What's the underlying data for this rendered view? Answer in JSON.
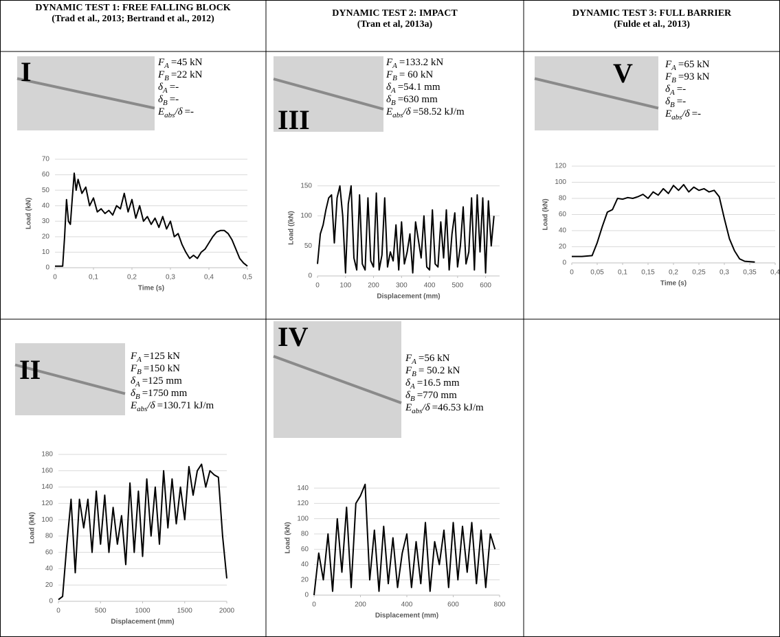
{
  "table": {
    "headers": [
      {
        "title": "DYNAMIC TEST 1: FREE FALLING BLOCK",
        "ref": "(Trad et al., 2013; Bertrand et al., 2012)"
      },
      {
        "title": "DYNAMIC TEST 2: IMPACT",
        "ref": "(Tran et al, 2013a)"
      },
      {
        "title": "DYNAMIC TEST 3: FULL BARRIER",
        "ref": "(Fulde et al., 2013)"
      }
    ],
    "cells": [
      {
        "label": "I",
        "params": [
          {
            "symbol": "F",
            "sub": "A",
            "value": "=45 kN"
          },
          {
            "symbol": "F",
            "sub": "B",
            "value": "=22 kN"
          },
          {
            "symbol": "δ",
            "sub": "A",
            "value": "=-"
          },
          {
            "symbol": "δ",
            "sub": "B",
            "value": "=-"
          },
          {
            "symbol": "E",
            "sub": "abs",
            "suffix": "/δ",
            "value": "=-"
          }
        ],
        "chart": {
          "type": "line",
          "color": "#000000",
          "grid": true,
          "xlabel": "Time (s)",
          "ylabel": "Load (kN)",
          "xlim": [
            0,
            0.5
          ],
          "ylim": [
            0,
            70
          ],
          "xticks": [
            0,
            {
              "value": 0.1,
              "label": "0,1"
            },
            {
              "value": 0.2,
              "label": "0,2"
            },
            {
              "value": 0.3,
              "label": "0,3"
            },
            {
              "value": 0.4,
              "label": "0,4"
            },
            {
              "value": 0.5,
              "label": "0,5"
            }
          ],
          "yticks": [
            0,
            10,
            20,
            30,
            40,
            50,
            60,
            70
          ],
          "x": [
            0,
            0.02,
            0.025,
            0.03,
            0.035,
            0.04,
            0.045,
            0.05,
            0.055,
            0.06,
            0.07,
            0.08,
            0.09,
            0.1,
            0.11,
            0.12,
            0.13,
            0.14,
            0.15,
            0.16,
            0.17,
            0.18,
            0.19,
            0.2,
            0.21,
            0.22,
            0.23,
            0.24,
            0.25,
            0.26,
            0.27,
            0.28,
            0.29,
            0.3,
            0.31,
            0.32,
            0.33,
            0.34,
            0.35,
            0.36,
            0.37,
            0.38,
            0.39,
            0.4,
            0.41,
            0.42,
            0.43,
            0.44,
            0.45,
            0.46,
            0.47,
            0.48,
            0.49,
            0.5
          ],
          "values": [
            1,
            1,
            20,
            44,
            30,
            28,
            45,
            61,
            50,
            57,
            48,
            52,
            40,
            45,
            36,
            38,
            35,
            37,
            34,
            40,
            38,
            48,
            36,
            44,
            32,
            40,
            30,
            33,
            28,
            32,
            26,
            33,
            25,
            30,
            20,
            22,
            15,
            10,
            6,
            8,
            6,
            10,
            12,
            16,
            20,
            23,
            24,
            24,
            22,
            18,
            12,
            6,
            3,
            1
          ]
        }
      },
      {
        "label": "III",
        "params": [
          {
            "symbol": "F",
            "sub": "A",
            "value": "=133.2 kN"
          },
          {
            "symbol": "F",
            "sub": "B",
            "value": "= 60 kN"
          },
          {
            "symbol": "δ",
            "sub": "A",
            "value": "=54.1 mm"
          },
          {
            "symbol": "δ",
            "sub": "B",
            "value": "=630 mm"
          },
          {
            "symbol": "E",
            "sub": "abs",
            "suffix": "/δ",
            "value": "=58.52 kJ/m"
          }
        ],
        "chart": {
          "type": "line",
          "color": "#000000",
          "grid": true,
          "xlabel": "Displacement (mm)",
          "ylabel": "Load ((kN)",
          "xlim": [
            0,
            650
          ],
          "ylim": [
            0,
            160
          ],
          "xticks": [
            0,
            100,
            200,
            300,
            400,
            500,
            600
          ],
          "yticks": [
            0,
            50,
            100,
            150
          ],
          "x": [
            0,
            10,
            20,
            30,
            40,
            50,
            60,
            70,
            80,
            90,
            100,
            110,
            120,
            130,
            140,
            150,
            160,
            170,
            180,
            190,
            200,
            210,
            220,
            230,
            240,
            250,
            260,
            270,
            280,
            290,
            300,
            310,
            320,
            330,
            340,
            350,
            360,
            370,
            380,
            390,
            400,
            410,
            420,
            430,
            440,
            450,
            460,
            470,
            480,
            490,
            500,
            510,
            520,
            530,
            540,
            550,
            560,
            570,
            580,
            590,
            600,
            610,
            620,
            630
          ],
          "values": [
            20,
            70,
            85,
            110,
            130,
            135,
            55,
            130,
            150,
            100,
            5,
            120,
            150,
            30,
            10,
            135,
            20,
            10,
            130,
            25,
            15,
            138,
            10,
            35,
            130,
            15,
            40,
            25,
            85,
            10,
            90,
            20,
            40,
            70,
            5,
            90,
            60,
            30,
            100,
            15,
            10,
            110,
            20,
            15,
            90,
            30,
            110,
            10,
            70,
            105,
            15,
            50,
            115,
            20,
            40,
            130,
            10,
            135,
            40,
            130,
            5,
            125,
            50,
            100
          ]
        }
      },
      {
        "label": "V",
        "params": [
          {
            "symbol": "F",
            "sub": "A",
            "value": "=65 kN"
          },
          {
            "symbol": "F",
            "sub": "B",
            "value": "=93 kN"
          },
          {
            "symbol": "δ",
            "sub": "A",
            "value": "=-"
          },
          {
            "symbol": "δ",
            "sub": "B",
            "value": "=-"
          },
          {
            "symbol": "E",
            "sub": "abs",
            "suffix": "/δ",
            "value": "=-"
          }
        ],
        "chart": {
          "type": "line",
          "color": "#000000",
          "grid": true,
          "xlabel": "Time (s)",
          "ylabel": "Load (kN)",
          "xlim": [
            0,
            0.4
          ],
          "ylim": [
            0,
            120
          ],
          "xticks": [
            0,
            {
              "value": 0.05,
              "label": "0,05"
            },
            {
              "value": 0.1,
              "label": "0,1"
            },
            {
              "value": 0.15,
              "label": "0,15"
            },
            {
              "value": 0.2,
              "label": "0,2"
            },
            {
              "value": 0.25,
              "label": "0,25"
            },
            {
              "value": 0.3,
              "label": "0,3"
            },
            {
              "value": 0.35,
              "label": "0,35"
            },
            {
              "value": 0.4,
              "label": "0,4"
            }
          ],
          "yticks": [
            0,
            20,
            40,
            60,
            80,
            100,
            120
          ],
          "x": [
            0,
            0.02,
            0.04,
            0.05,
            0.06,
            0.07,
            0.08,
            0.09,
            0.1,
            0.11,
            0.12,
            0.13,
            0.14,
            0.15,
            0.16,
            0.17,
            0.18,
            0.19,
            0.2,
            0.21,
            0.22,
            0.23,
            0.24,
            0.25,
            0.26,
            0.27,
            0.28,
            0.29,
            0.3,
            0.31,
            0.32,
            0.33,
            0.34,
            0.36
          ],
          "values": [
            8,
            8,
            9,
            25,
            45,
            63,
            66,
            80,
            79,
            81,
            80,
            82,
            85,
            80,
            88,
            84,
            92,
            86,
            96,
            90,
            97,
            88,
            94,
            90,
            92,
            88,
            90,
            82,
            55,
            30,
            15,
            5,
            2,
            1
          ]
        }
      },
      {
        "label": "II",
        "params": [
          {
            "symbol": "F",
            "sub": "A",
            "value": "=125 kN"
          },
          {
            "symbol": "F",
            "sub": "B",
            "value": "=150 kN"
          },
          {
            "symbol": "δ",
            "sub": "A",
            "value": "=125 mm"
          },
          {
            "symbol": "δ",
            "sub": "B",
            "value": "=1750 mm"
          },
          {
            "symbol": "E",
            "sub": "abs",
            "suffix": "/δ",
            "value": "=130.71 kJ/m"
          }
        ],
        "chart": {
          "type": "line",
          "color": "#000000",
          "grid": true,
          "xlabel": "Displacement (mm)",
          "ylabel": "Load (kN)",
          "xlim": [
            0,
            2000
          ],
          "ylim": [
            0,
            180
          ],
          "xticks": [
            0,
            500,
            1000,
            1500,
            2000
          ],
          "yticks": [
            0,
            20,
            40,
            60,
            80,
            100,
            120,
            140,
            160,
            180
          ],
          "x": [
            0,
            50,
            100,
            150,
            200,
            250,
            300,
            350,
            400,
            450,
            500,
            550,
            600,
            650,
            700,
            750,
            800,
            850,
            900,
            950,
            1000,
            1050,
            1100,
            1150,
            1200,
            1250,
            1300,
            1350,
            1400,
            1450,
            1500,
            1550,
            1600,
            1650,
            1700,
            1750,
            1800,
            1850,
            1900,
            1950,
            2000
          ],
          "values": [
            2,
            6,
            70,
            125,
            35,
            125,
            90,
            125,
            60,
            135,
            70,
            130,
            60,
            115,
            70,
            105,
            45,
            145,
            60,
            135,
            55,
            150,
            80,
            140,
            70,
            160,
            90,
            150,
            95,
            140,
            100,
            165,
            130,
            160,
            168,
            140,
            160,
            155,
            152,
            80,
            28
          ]
        }
      },
      {
        "label": "IV",
        "params": [
          {
            "symbol": "F",
            "sub": "A",
            "value": "=56 kN"
          },
          {
            "symbol": "F",
            "sub": "B",
            "value": "= 50.2 kN"
          },
          {
            "symbol": "δ",
            "sub": "A",
            "value": "=16.5 mm"
          },
          {
            "symbol": "δ",
            "sub": "B",
            "value": "=770 mm"
          },
          {
            "symbol": "E",
            "sub": "abs",
            "suffix": "/δ",
            "value": "=46.53  kJ/m"
          }
        ],
        "chart": {
          "type": "line",
          "color": "#000000",
          "grid": true,
          "xlabel": "Displacement (mm)",
          "ylabel": "Load (kN)",
          "xlim": [
            0,
            800
          ],
          "ylim": [
            0,
            150
          ],
          "xticks": [
            0,
            200,
            400,
            600,
            800
          ],
          "yticks": [
            0,
            20,
            40,
            60,
            80,
            100,
            120,
            140
          ],
          "x": [
            0,
            20,
            40,
            60,
            80,
            100,
            120,
            140,
            160,
            180,
            200,
            220,
            240,
            260,
            280,
            300,
            320,
            340,
            360,
            380,
            400,
            420,
            440,
            460,
            480,
            500,
            520,
            540,
            560,
            580,
            600,
            620,
            640,
            660,
            680,
            700,
            720,
            740,
            760,
            780
          ],
          "values": [
            0,
            55,
            20,
            80,
            5,
            100,
            30,
            115,
            10,
            120,
            130,
            145,
            20,
            85,
            5,
            90,
            15,
            75,
            10,
            55,
            80,
            10,
            70,
            15,
            95,
            5,
            70,
            40,
            85,
            10,
            95,
            20,
            90,
            30,
            95,
            15,
            85,
            10,
            80,
            60
          ]
        }
      }
    ]
  }
}
